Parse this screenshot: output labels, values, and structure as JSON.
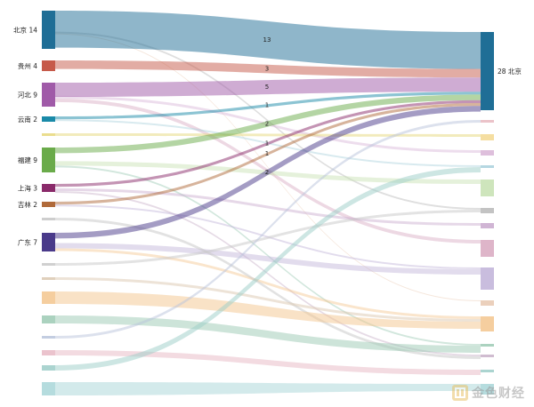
{
  "chart_data": {
    "type": "sankey",
    "target": {
      "name": "北京",
      "value": 28,
      "label": "28 北京",
      "color": "#1f6e96"
    },
    "labeled_sources": [
      {
        "name": "北京",
        "value": 14,
        "label": "北京 14",
        "color": "#1f6e96",
        "flow": 13
      },
      {
        "name": "贵州",
        "value": 4,
        "label": "贵州 4",
        "color": "#c65a4a",
        "flow": 3
      },
      {
        "name": "河北",
        "value": 9,
        "label": "河北 9",
        "color": "#a05aa8",
        "flow": 5
      },
      {
        "name": "云南",
        "value": 2,
        "label": "云南 2",
        "color": "#1a8aa8",
        "flow": 1
      },
      {
        "name": "福建",
        "value": 9,
        "label": "福建 9",
        "color": "#6aab4a",
        "flow": 2
      },
      {
        "name": "上海",
        "value": 3,
        "label": "上海 3",
        "color": "#8a2a6a",
        "flow": 1
      },
      {
        "name": "吉林",
        "value": 2,
        "label": "吉林 2",
        "color": "#b06a3a",
        "flow": 1
      },
      {
        "name": "广东",
        "value": 7,
        "label": "广东 7",
        "color": "#4a3a8a",
        "flow": 2
      }
    ],
    "flow_labels": [
      "13",
      "3",
      "5",
      "1",
      "2",
      "1",
      "1",
      "2"
    ],
    "faded_left_colors": [
      "#e6d77a",
      "#c6c6c6",
      "#c8c8c8",
      "#dbc8b0",
      "#f3c58e",
      "#9ccab4",
      "#b9c4dc",
      "#e8b8c4",
      "#9ccdc8",
      "#a8d6d8"
    ],
    "faded_right_colors": [
      "#e8b8c0",
      "#f3d890",
      "#d8b4d6",
      "#a8d0dc",
      "#c6e0b0",
      "#b8b8b8",
      "#c8a8cc",
      "#d8a8c0",
      "#bfb2d8",
      "#e8c8b0",
      "#f3c58e",
      "#9ccab4",
      "#c8b0c8",
      "#9ccdc8",
      "#a8d6d8"
    ],
    "watermark": "金色财经"
  }
}
